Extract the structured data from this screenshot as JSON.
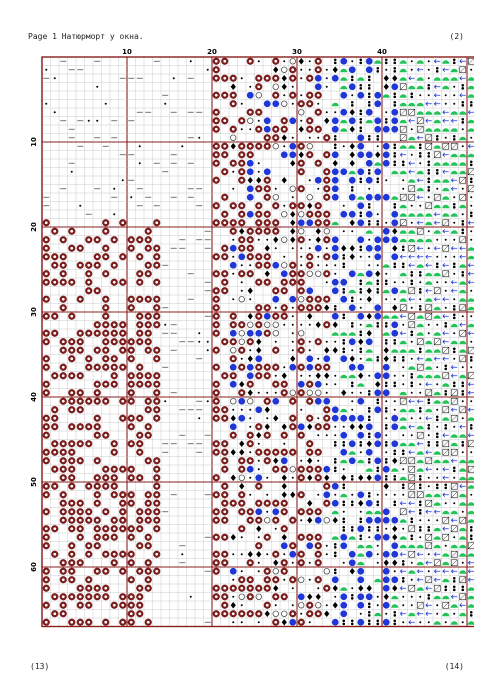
{
  "header": {
    "title": "Page 1  Натюрморт у окна.",
    "page_ref": "(2)"
  },
  "footer": {
    "left_ref": "(13)",
    "right_ref": "(14)"
  },
  "chart": {
    "columns": 52,
    "rows": 67,
    "column_labels": [
      "10",
      "20",
      "30",
      "40"
    ],
    "row_labels": [
      "10",
      "20",
      "30",
      "40",
      "50",
      "60"
    ],
    "major_every": 10
  },
  "colors": {
    "grid_line": "#b8b8b8",
    "major_line": "#8a1f1f",
    "frame": "#8a1f1f",
    "brown_symbol": "#7a1c1c",
    "blue_symbol": "#1f37d6",
    "green_symbol": "#22c45a",
    "black_symbol": "#000000"
  }
}
